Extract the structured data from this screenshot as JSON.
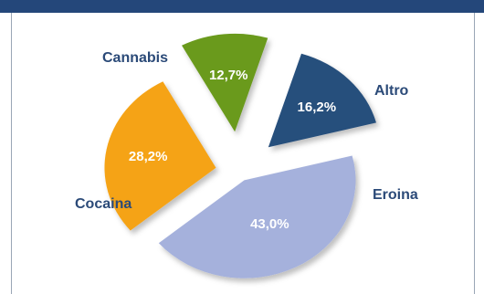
{
  "chart_data": {
    "type": "pie",
    "exploded": true,
    "categories": [
      "Cocaina",
      "Cannabis",
      "Altro",
      "Eroina"
    ],
    "values": [
      43.0,
      28.2,
      12.7,
      16.2
    ],
    "labels": [
      "43,0%",
      "28,2%",
      "12,7%",
      "16,2%"
    ],
    "colors": [
      "#a5b1dc",
      "#f5a315",
      "#6b9a1f",
      "#284f7c"
    ],
    "label_color": "#2b4a78"
  }
}
